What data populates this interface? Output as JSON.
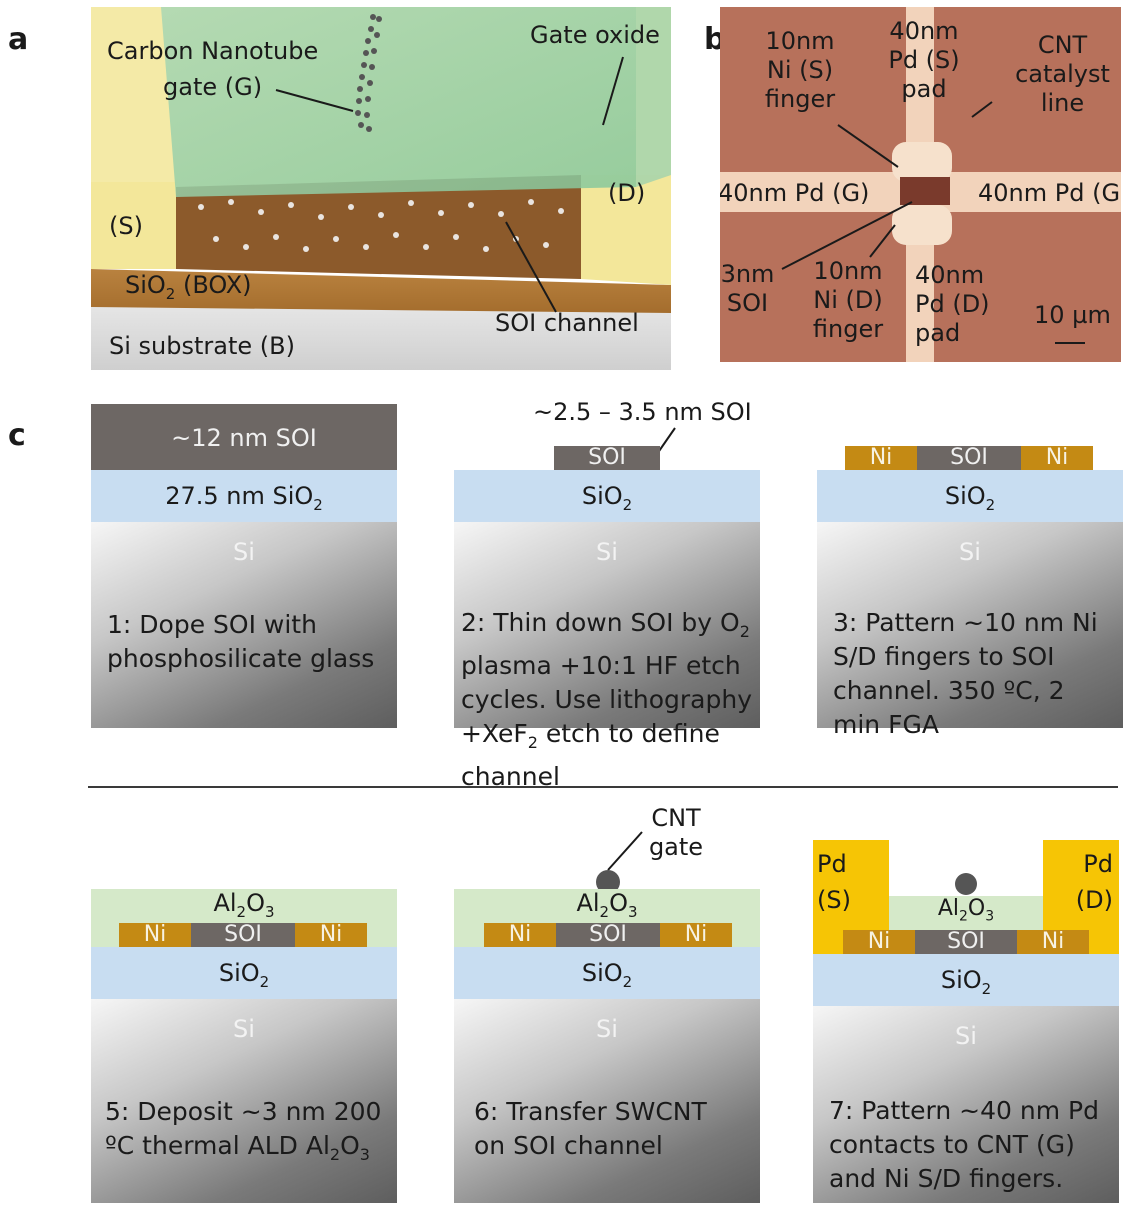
{
  "panel_letters": {
    "a": "a",
    "b": "b",
    "c": "c"
  },
  "panel_a": {
    "gate_oxide": "Gate oxide",
    "cnt_gate_line1": "Carbon Nanotube",
    "cnt_gate_line2": "gate (G)",
    "source": "(S)",
    "drain": "(D)",
    "box_prefix": "SiO",
    "box_sub": "2",
    "box_suffix": " (BOX)",
    "soi_channel": "SOI channel",
    "substrate": "Si substrate (B)"
  },
  "panel_b": {
    "ni_s_1": "10nm",
    "ni_s_2": "Ni (S)",
    "ni_s_3": "finger",
    "pd_s_1": "40nm",
    "pd_s_2": "Pd (S)",
    "pd_s_3": "pad",
    "cnt_1": "CNT",
    "cnt_2": "catalyst",
    "cnt_3": "line",
    "pd_g_left": "40nm Pd (G)",
    "pd_g_right": "40nm Pd (G)",
    "soi_1": "3nm",
    "soi_2": "SOI",
    "ni_d_1": "10nm",
    "ni_d_2": "Ni (D)",
    "ni_d_3": "finger",
    "pd_d_1": "40nm",
    "pd_d_2": "Pd (D)",
    "pd_d_3": "pad",
    "scale": "10 µm"
  },
  "panel_c": {
    "si": "Si",
    "sio2_main": "SiO",
    "sub2": "2",
    "sub3": "3",
    "soi": "SOI",
    "ni": "Ni",
    "al_a": "Al",
    "al_o": "O",
    "step1": {
      "soi_label": "~12 nm SOI",
      "sio2_prefix": "27.5 nm SiO",
      "cap1": "1: Dope SOI with",
      "cap2": "phosphosilicate glass"
    },
    "step2": {
      "soi_callout": "~2.5 – 3.5 nm SOI",
      "cap1a": "2: Thin down SOI by O",
      "cap2": "plasma +10:1 HF etch",
      "cap3": "cycles. Use lithography",
      "cap4a": "+XeF",
      "cap4b": " etch to define",
      "cap5": "channel"
    },
    "step3": {
      "cap1": "3: Pattern ~10 nm Ni",
      "cap2": "S/D fingers to SOI",
      "cap3": "channel. 350 ºC, 2",
      "cap4": "min FGA"
    },
    "step5": {
      "cap1": "5: Deposit ~3 nm 200",
      "cap2a": "ºC thermal ALD Al",
      "cap2b": "O"
    },
    "step6": {
      "cnt_1": "CNT",
      "cnt_2": "gate",
      "cap1": "6: Transfer SWCNT",
      "cap2": "on SOI channel"
    },
    "step7": {
      "pd_s_1": "Pd",
      "pd_s_2": "(S)",
      "pd_d_1": "Pd",
      "pd_d_2": "(D)",
      "cap1": "7: Pattern ~40 nm Pd",
      "cap2": "contacts to CNT (G)",
      "cap3": "and Ni S/D fingers."
    }
  }
}
